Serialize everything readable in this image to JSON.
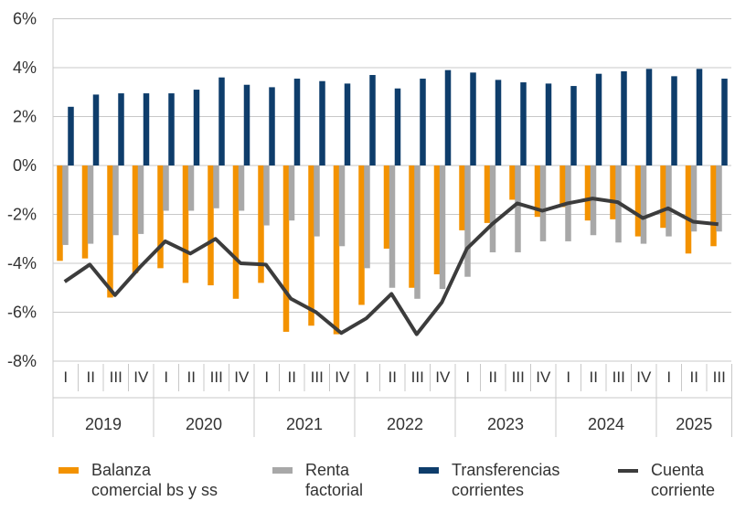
{
  "chart_data": {
    "type": "bar+line",
    "ylim": [
      -8,
      6
    ],
    "yticks": [
      -8,
      -6,
      -4,
      -2,
      0,
      2,
      4,
      6
    ],
    "ytick_labels": [
      "-8%",
      "-6%",
      "-4%",
      "-2%",
      "0%",
      "2%",
      "4%",
      "6%"
    ],
    "grid": true,
    "legend_position": "bottom",
    "years": [
      "2019",
      "2020",
      "2021",
      "2022",
      "2023",
      "2024",
      "2025"
    ],
    "year_quarter_counts": [
      4,
      4,
      4,
      4,
      4,
      4,
      3
    ],
    "quarter_labels": [
      "I",
      "II",
      "III",
      "IV"
    ],
    "series": [
      {
        "name": "Balanza comercial bs y ss",
        "type": "bar",
        "color": "#F39200",
        "values": [
          -3.9,
          -3.8,
          -5.4,
          -4.4,
          -4.2,
          -4.8,
          -4.9,
          -5.45,
          -4.8,
          -6.8,
          -6.55,
          -6.9,
          -5.7,
          -3.4,
          -5.0,
          -4.45,
          -2.65,
          -2.35,
          -1.4,
          -2.1,
          -1.7,
          -2.25,
          -2.2,
          -2.9,
          -2.55,
          -3.6,
          -3.3
        ]
      },
      {
        "name": "Renta factorial",
        "type": "bar",
        "color": "#A8A8A8",
        "values": [
          -3.25,
          -3.2,
          -2.85,
          -2.8,
          -1.85,
          -1.85,
          -1.75,
          -1.85,
          -2.45,
          -2.25,
          -2.9,
          -3.3,
          -4.2,
          -5.0,
          -5.45,
          -5.05,
          -4.55,
          -3.55,
          -3.55,
          -3.1,
          -3.1,
          -2.85,
          -3.15,
          -3.2,
          -2.9,
          -2.7,
          -2.7
        ]
      },
      {
        "name": "Transferencias corrientes",
        "type": "bar",
        "color": "#0E3D6B",
        "values": [
          2.4,
          2.9,
          2.95,
          2.95,
          2.95,
          3.1,
          3.6,
          3.3,
          3.2,
          3.55,
          3.45,
          3.35,
          3.7,
          3.15,
          3.55,
          3.9,
          3.8,
          3.5,
          3.4,
          3.35,
          3.25,
          3.75,
          3.85,
          3.95,
          3.65,
          3.95,
          3.55
        ]
      },
      {
        "name": "Cuenta corriente",
        "type": "line",
        "color": "#3C3C3C",
        "values": [
          -4.75,
          -4.05,
          -5.3,
          -4.15,
          -3.1,
          -3.6,
          -3.0,
          -4.0,
          -4.05,
          -5.45,
          -6.0,
          -6.85,
          -6.25,
          -5.25,
          -6.9,
          -5.6,
          -3.4,
          -2.4,
          -1.55,
          -1.85,
          -1.55,
          -1.35,
          -1.5,
          -2.15,
          -1.75,
          -2.3,
          -2.4
        ]
      }
    ]
  },
  "legend": [
    {
      "line1": "Balanza",
      "line2": "comercial bs y ss"
    },
    {
      "line1": "Renta",
      "line2": "factorial"
    },
    {
      "line1": "Transferencias",
      "line2": "corrientes"
    },
    {
      "line1": "Cuenta",
      "line2": "corriente"
    }
  ]
}
